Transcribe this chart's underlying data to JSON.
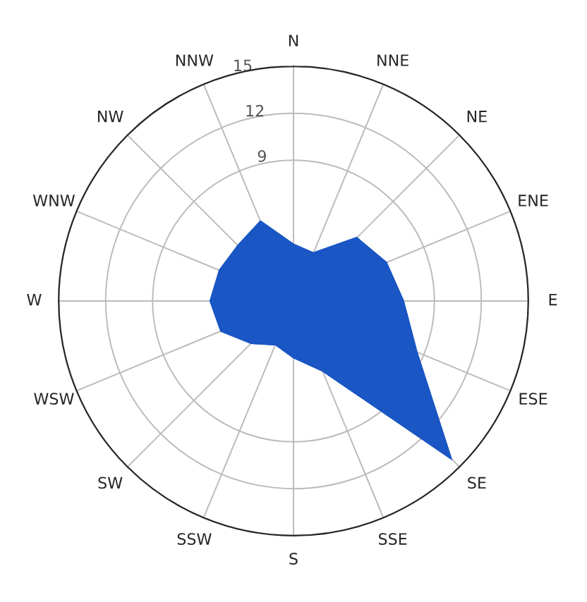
{
  "chart_data": {
    "type": "radar",
    "categories": [
      "N",
      "NNE",
      "NE",
      "ENE",
      "E",
      "ESE",
      "SE",
      "SSE",
      "S",
      "SSW",
      "SW",
      "WSW",
      "W",
      "WNW",
      "NW",
      "NNW"
    ],
    "series": [
      {
        "color": "#1a56c4",
        "values": [
          3.6,
          3.3,
          5.7,
          6.4,
          7.0,
          8.5,
          14.2,
          4.8,
          3.6,
          3.0,
          3.8,
          5.0,
          5.3,
          5.1,
          5.0,
          5.5
        ]
      }
    ],
    "ylim": [
      0,
      15
    ],
    "yticks": [
      9,
      12,
      15
    ],
    "grid": true
  }
}
